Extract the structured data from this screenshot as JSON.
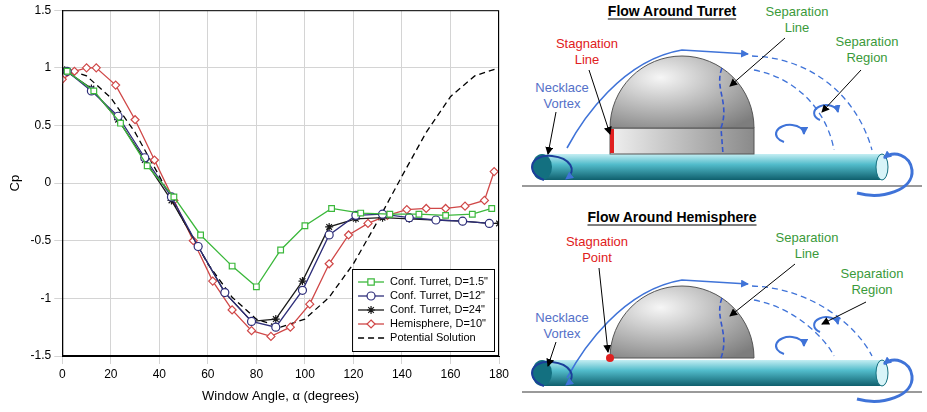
{
  "chart_data": {
    "type": "line",
    "xlabel": "Window Angle, α (degrees)",
    "ylabel": "Cp",
    "xlim": [
      0,
      180
    ],
    "xticks": [
      0,
      20,
      40,
      60,
      80,
      100,
      120,
      140,
      160,
      180
    ],
    "ylim": [
      -1.5,
      1.5
    ],
    "yticks": [
      -1.5,
      -1,
      -0.5,
      0,
      0.5,
      1,
      1.5
    ],
    "grid": true,
    "legend": "lower right",
    "series": [
      {
        "name": "Conf. Turret, D=1.5\"",
        "color": "#3cb83c",
        "marker": "square",
        "line_style": "solid",
        "x": [
          2,
          13,
          24,
          35,
          46,
          57,
          70,
          80,
          90,
          100,
          111,
          123,
          135,
          147,
          158,
          169,
          177
        ],
        "values": [
          0.97,
          0.8,
          0.52,
          0.15,
          -0.12,
          -0.45,
          -0.72,
          -0.9,
          -0.58,
          -0.37,
          -0.22,
          -0.26,
          -0.27,
          -0.27,
          -0.28,
          -0.27,
          -0.22
        ]
      },
      {
        "name": "Conf. Turret, D=12\"",
        "color": "#2e2e7a",
        "marker": "circle",
        "line_style": "solid",
        "x": [
          2,
          12,
          23,
          34,
          45,
          56,
          67,
          78,
          88,
          99,
          110,
          121,
          132,
          143,
          154,
          165,
          176
        ],
        "values": [
          0.97,
          0.8,
          0.58,
          0.22,
          -0.12,
          -0.55,
          -0.95,
          -1.2,
          -1.25,
          -0.93,
          -0.45,
          -0.28,
          -0.27,
          -0.3,
          -0.32,
          -0.33,
          -0.35
        ]
      },
      {
        "name": "Conf. Turret, D=24\"",
        "color": "#1a1a1a",
        "marker": "asterisk",
        "line_style": "solid",
        "x": [
          1,
          12,
          23,
          34,
          45,
          56,
          67,
          78,
          88,
          99,
          110,
          121,
          132,
          143,
          154,
          165,
          176,
          180
        ],
        "values": [
          0.98,
          0.82,
          0.55,
          0.2,
          -0.15,
          -0.55,
          -0.95,
          -1.2,
          -1.18,
          -0.85,
          -0.38,
          -0.31,
          -0.3,
          -0.31,
          -0.32,
          -0.33,
          -0.35,
          -0.35
        ]
      },
      {
        "name": "Hemisphere, D=10\"",
        "color": "#d04848",
        "marker": "diamond",
        "line_style": "solid",
        "x": [
          0,
          5,
          10,
          14,
          22,
          30,
          38,
          46,
          54,
          62,
          70,
          78,
          86,
          94,
          102,
          110,
          118,
          126,
          134,
          142,
          150,
          158,
          166,
          174,
          178
        ],
        "values": [
          0.9,
          0.97,
          1.0,
          1.0,
          0.85,
          0.55,
          0.2,
          -0.15,
          -0.5,
          -0.85,
          -1.1,
          -1.28,
          -1.33,
          -1.25,
          -1.05,
          -0.7,
          -0.45,
          -0.35,
          -0.28,
          -0.23,
          -0.22,
          -0.22,
          -0.2,
          -0.15,
          0.1
        ]
      },
      {
        "name": "Potential Solution",
        "color": "#000000",
        "marker": "none",
        "line_style": "dashed",
        "x": [
          0,
          10,
          20,
          30,
          40,
          50,
          60,
          70,
          80,
          90,
          100,
          110,
          120,
          130,
          140,
          150,
          160,
          170,
          180
        ],
        "values": [
          1.0,
          0.93,
          0.74,
          0.44,
          0.06,
          -0.33,
          -0.7,
          -0.99,
          -1.18,
          -1.25,
          -1.18,
          -0.99,
          -0.7,
          -0.33,
          0.06,
          0.44,
          0.75,
          0.93,
          1.0
        ]
      }
    ]
  },
  "diagrams": [
    {
      "title": "Flow Around Turret",
      "stagnation": "Stagnation Line",
      "separation_line": "Separation Line",
      "separation_region": "Separation Region",
      "vortex": "Necklace Vortex"
    },
    {
      "title": "Flow Around Hemisphere",
      "stagnation": "Stagnation Point",
      "separation_line": "Separation Line",
      "separation_region": "Separation Region",
      "vortex": "Necklace Vortex"
    }
  ]
}
